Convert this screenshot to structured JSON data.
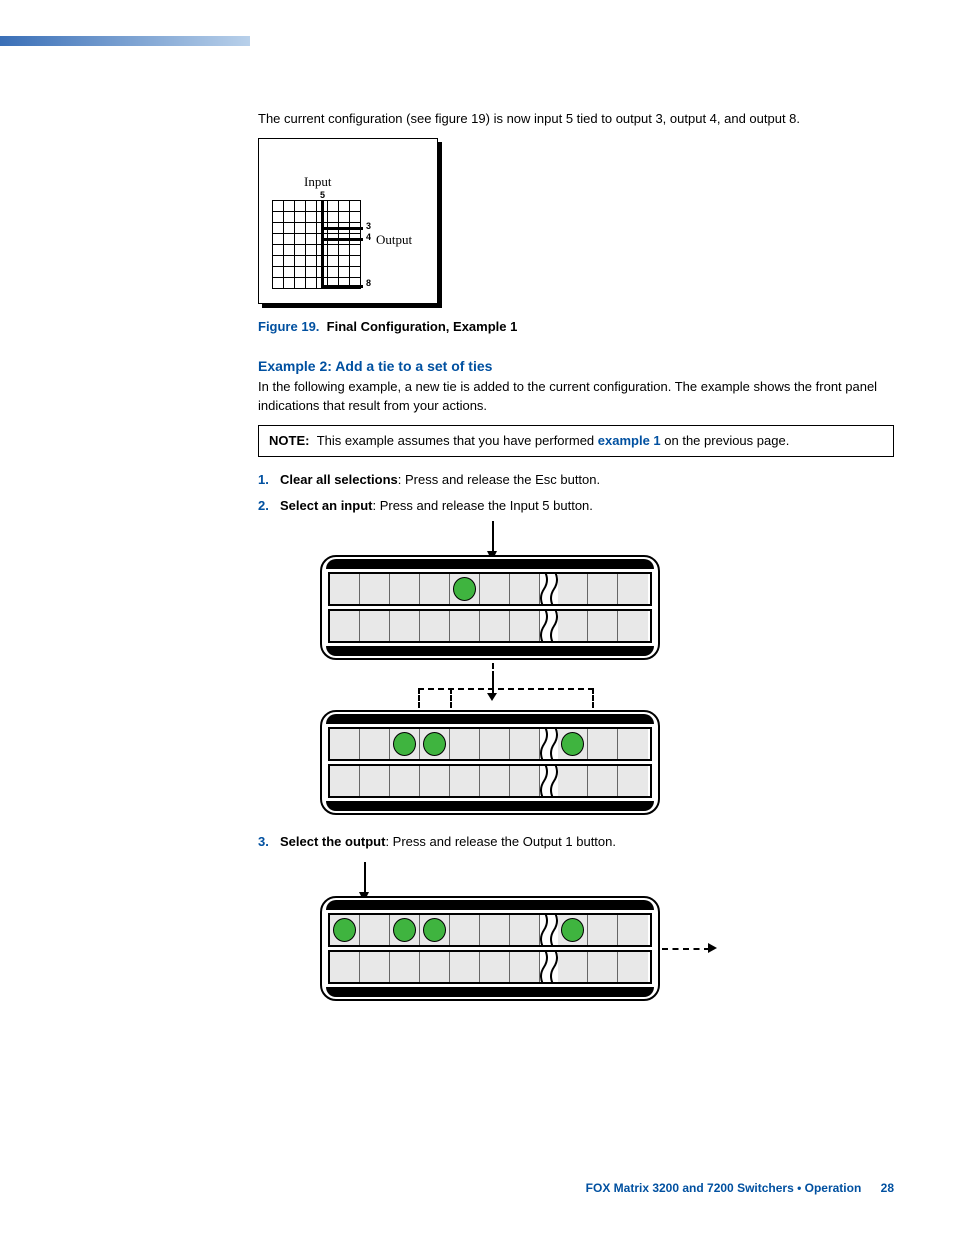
{
  "intro_text": "The current configuration (see figure 19) is now input 5 tied to output 3, output 4, and output 8.",
  "fig19": {
    "input_label": "Input",
    "input_num": "5",
    "output_label": "Output",
    "output_nums": [
      "3",
      "4",
      "8"
    ],
    "grid": {
      "cols": 8,
      "rows": 8,
      "cell_size": 11
    },
    "ties": {
      "input_col": 5,
      "output_rows": [
        3,
        4,
        8
      ]
    },
    "colors": {
      "frame": "#000000",
      "bg": "#ffffff"
    }
  },
  "fig19_caption": {
    "num": "Figure 19.",
    "title": "Final Configuration, Example 1"
  },
  "example2": {
    "heading": "Example 2: Add a tie to a set of ties",
    "body": "In the following example, a new tie is added to the current configuration. The example shows the front panel indications that result from your actions."
  },
  "note": {
    "label": "NOTE:",
    "pre": "This example assumes that you have performed ",
    "link": "example 1",
    "post": " on the previous page."
  },
  "steps": [
    {
      "title": "Clear all selections",
      "rest": ": Press and release the Esc button."
    },
    {
      "title": "Select an input",
      "rest": ": Press and release the Input 5 button."
    },
    {
      "title": "Select the output",
      "rest": ": Press and release the Output 1 button."
    }
  ],
  "panels": {
    "button_count_visible": 8,
    "button_count_after_break": 2,
    "colors": {
      "lit": "#3fb43f",
      "button_bg": "#e8e8e8",
      "frame": "#000000"
    },
    "panel1": {
      "row1_lit": [
        5
      ],
      "row2_lit": [],
      "arrow_on": 5
    },
    "panel2": {
      "row1_lit": [
        3,
        4,
        8
      ],
      "row2_lit": [],
      "bracket_on": [
        3,
        4,
        8
      ]
    },
    "panel3": {
      "row1_lit": [
        1,
        3,
        4,
        8
      ],
      "row2_lit": [],
      "arrow_on": 1,
      "aux_lit": [
        1
      ],
      "aux_ctrl": [
        "▼",
        "▲"
      ]
    }
  },
  "footer": {
    "text": "FOX Matrix 3200 and 7200 Switchers • Operation",
    "page": "28"
  }
}
